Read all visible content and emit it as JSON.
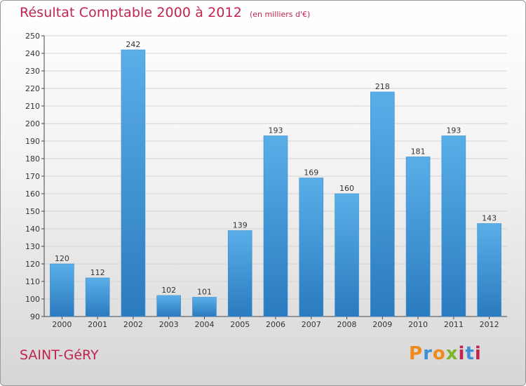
{
  "title": "Résultat Comptable 2000 à 2012",
  "subtitle": "(en milliers d'€)",
  "place": "SAINT-GéRY",
  "logo": {
    "text": "Proxiti",
    "letters": [
      "P",
      "r",
      "o",
      "x",
      "i",
      "t",
      "i"
    ],
    "colors": [
      "#f08a1c",
      "#3f8ed8",
      "#f08a1c",
      "#7db52f",
      "#c0244f",
      "#3f8ed8",
      "#c0244f"
    ]
  },
  "colors": {
    "bar_top": "#5aaee8",
    "bar_bottom": "#2a7bbf",
    "title": "#c0244f"
  },
  "chart_data": {
    "type": "bar",
    "title": "Résultat Comptable 2000 à 2012",
    "subtitle": "(en milliers d'€)",
    "categories": [
      "2000",
      "2001",
      "2002",
      "2003",
      "2004",
      "2005",
      "2006",
      "2007",
      "2008",
      "2009",
      "2010",
      "2011",
      "2012"
    ],
    "values": [
      120,
      112,
      242,
      102,
      101,
      139,
      193,
      169,
      160,
      218,
      181,
      193,
      143
    ],
    "ylim": [
      90,
      250
    ],
    "yticks": [
      90,
      100,
      110,
      120,
      130,
      140,
      150,
      160,
      170,
      180,
      190,
      200,
      210,
      220,
      230,
      240,
      250
    ],
    "grid": true,
    "xlabel": "",
    "ylabel": ""
  }
}
